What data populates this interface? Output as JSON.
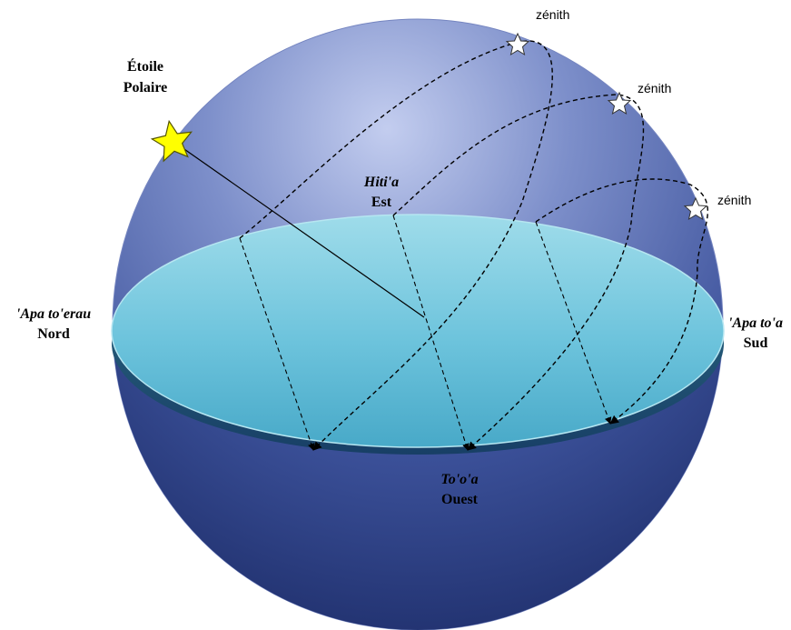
{
  "labels": {
    "polaris_line1": "Étoile",
    "polaris_line2": "Polaire",
    "east_local": "Hiti'a",
    "east": "Est",
    "north_local": "'Apa to'erau",
    "north": "Nord",
    "south_local": "'Apa to'a",
    "south": "Sud",
    "west_local": "To'o'a",
    "west": "Ouest",
    "zenith": "zénith"
  },
  "colors": {
    "sphere_dark": "#2c3f7a",
    "sphere_mid": "#5b6fb0",
    "sphere_light": "#a9b6e0",
    "horizon_plane": "#7ccde0",
    "polaris_star": "#ffff00",
    "zenith_star": "#ffffff"
  },
  "icons": {
    "polaris": "star-icon",
    "zenith": "star-outline-icon"
  }
}
